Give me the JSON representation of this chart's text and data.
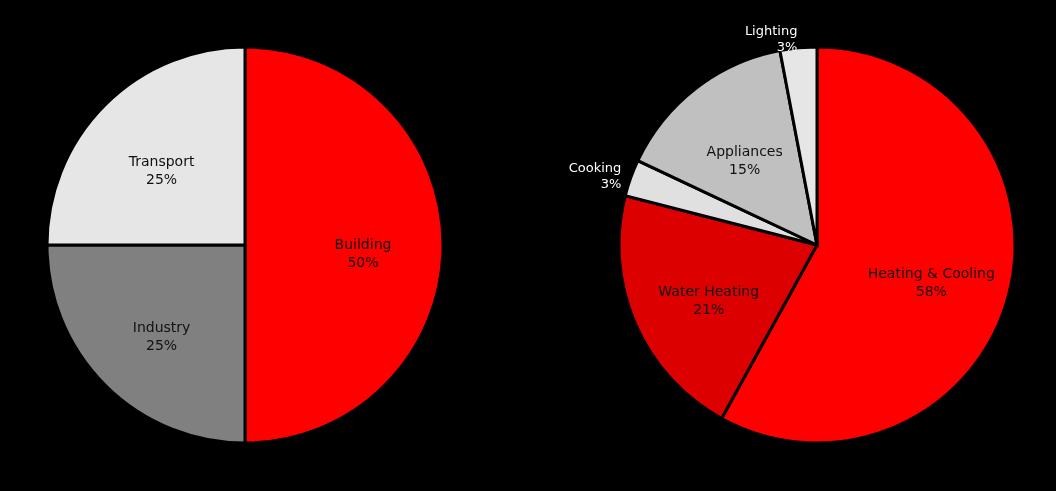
{
  "chart_data": [
    {
      "type": "pie",
      "categories": [
        "Building",
        "Industry",
        "Transport"
      ],
      "values": [
        50,
        25,
        25
      ],
      "colors": [
        "#ff0000",
        "#808080",
        "#e6e6e6"
      ],
      "value_labels": [
        "50%",
        "25%",
        "25%"
      ],
      "legend": false
    },
    {
      "type": "pie",
      "categories": [
        "Heating & Cooling",
        "Water Heating",
        "Cooking",
        "Appliances",
        "Lighting"
      ],
      "values": [
        58,
        21,
        3,
        15,
        3
      ],
      "colors": [
        "#ff0000",
        "#dd0000",
        "#e0e0e0",
        "#c0c0c0",
        "#e6e6e6"
      ],
      "value_labels": [
        "58%",
        "21%",
        "3%",
        "15%",
        "3%"
      ],
      "legend": false
    }
  ]
}
